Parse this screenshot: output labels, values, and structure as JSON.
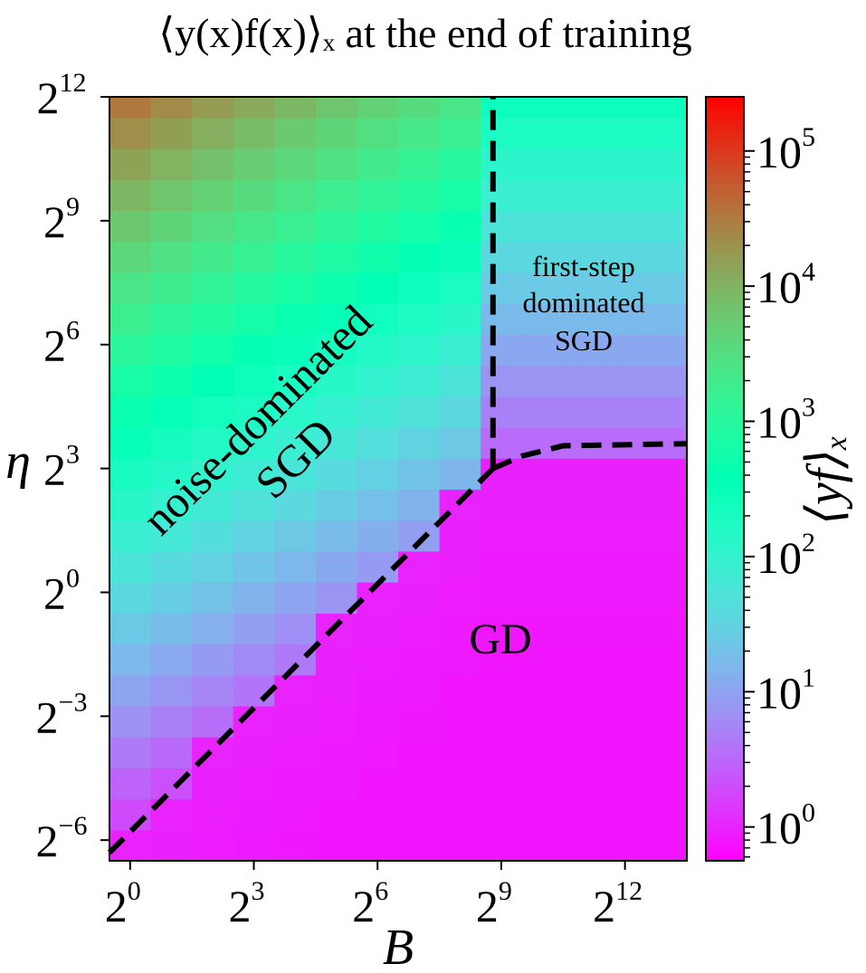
{
  "chart_data": {
    "type": "heatmap",
    "title": "⟨y(x)f(x)⟩ₓ at the end of training",
    "xlabel": "B",
    "ylabel": "η",
    "colorbar_label": "⟨yf⟩ₓ",
    "x_scale": "log2",
    "y_scale": "log2",
    "color_scale": "log10",
    "colormap": "rainbow",
    "xlim_log2": [
      -0.5,
      13.5
    ],
    "ylim_log2": [
      -6.5,
      12
    ],
    "clim_log10": [
      -0.25,
      5.4
    ],
    "x_ticks": [
      {
        "base": "2",
        "exp": "0"
      },
      {
        "base": "2",
        "exp": "3"
      },
      {
        "base": "2",
        "exp": "6"
      },
      {
        "base": "2",
        "exp": "9"
      },
      {
        "base": "2",
        "exp": "12"
      }
    ],
    "y_ticks": [
      {
        "base": "2",
        "exp": "12"
      },
      {
        "base": "2",
        "exp": "9"
      },
      {
        "base": "2",
        "exp": "6"
      },
      {
        "base": "2",
        "exp": "3"
      },
      {
        "base": "2",
        "exp": "0"
      },
      {
        "base": "2",
        "exp": "−3"
      },
      {
        "base": "2",
        "exp": "−6"
      }
    ],
    "colorbar_ticks": [
      {
        "base": "10",
        "exp": "5"
      },
      {
        "base": "10",
        "exp": "4"
      },
      {
        "base": "10",
        "exp": "3"
      },
      {
        "base": "10",
        "exp": "2"
      },
      {
        "base": "10",
        "exp": "1"
      },
      {
        "base": "10",
        "exp": "0"
      }
    ],
    "model": {
      "description_log10_value": "approximate per-cell log10 of ⟨yf⟩ₓ",
      "upper_left_log10": 5.0,
      "gd_floor_log10": 0.0
    },
    "regions": [
      {
        "name": "noise-dominated",
        "line2": "SGD"
      },
      {
        "name": "first-step",
        "line2": "dominated",
        "line3": "SGD"
      },
      {
        "name": "GD"
      }
    ],
    "boundaries": [
      {
        "name": "noise-gd-boundary",
        "points_log2": [
          [
            -0.5,
            -6.3
          ],
          [
            8.8,
            3.0
          ]
        ]
      },
      {
        "name": "vertical-boundary",
        "points_log2": [
          [
            8.8,
            3.0
          ],
          [
            8.8,
            12.0
          ]
        ]
      },
      {
        "name": "firststep-gd-boundary",
        "points_log2": [
          [
            8.8,
            3.0
          ],
          [
            9.5,
            3.3
          ],
          [
            10.5,
            3.55
          ],
          [
            13.5,
            3.6
          ]
        ]
      }
    ]
  }
}
